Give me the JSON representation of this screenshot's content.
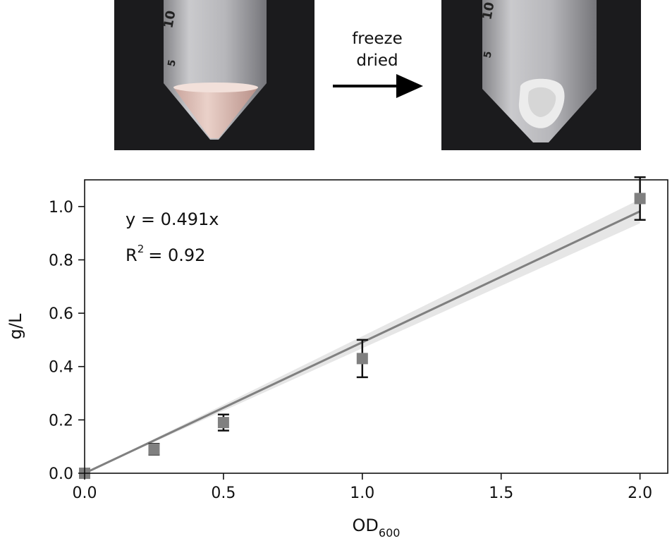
{
  "figure": {
    "photos": {
      "before": {
        "tube_marks": [
          "10",
          "5"
        ]
      },
      "after": {
        "tube_marks": [
          "10",
          "5"
        ]
      }
    },
    "arrow": {
      "label_line1": "freeze",
      "label_line2": "dried"
    }
  },
  "chart_data": {
    "type": "scatter",
    "xlabel": "OD",
    "xlabel_subscript": "600",
    "ylabel": "g/L",
    "xlim": [
      0.0,
      2.1
    ],
    "ylim": [
      0.0,
      1.1
    ],
    "xticks": [
      "0.0",
      "0.5",
      "1.0",
      "1.5",
      "2.0"
    ],
    "yticks": [
      "0.0",
      "0.2",
      "0.4",
      "0.6",
      "0.8",
      "1.0"
    ],
    "grid": false,
    "series": [
      {
        "x": [
          0.0,
          0.25,
          0.5,
          1.0,
          2.0
        ],
        "y": [
          0.0,
          0.09,
          0.19,
          0.43,
          1.03
        ],
        "yerr": [
          0.0,
          0.02,
          0.03,
          0.07,
          0.08
        ],
        "marker": "square",
        "color": "#808080",
        "error_color": "#111111"
      }
    ],
    "fit": {
      "slope": 0.491,
      "color": "#808080",
      "band_color": "#e6e6e6",
      "band_halfwidth_at_xmax": 0.045,
      "equation": "y = 0.491x",
      "r_squared_label": "R",
      "r_squared_superscript": "2",
      "r_squared_value": "= 0.92"
    }
  }
}
